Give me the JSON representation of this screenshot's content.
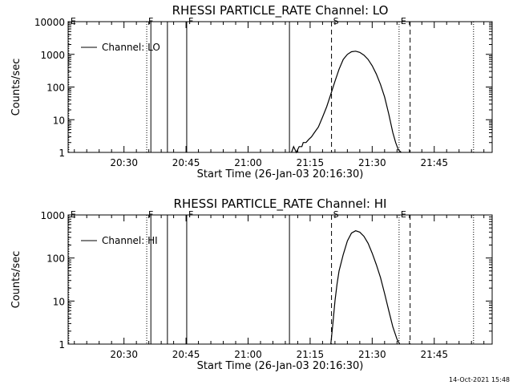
{
  "footer": {
    "timestamp": "14-Oct-2021 15:48"
  },
  "chart_data": [
    {
      "type": "line",
      "title": "RHESSI PARTICLE_RATE Channel: LO",
      "xlabel": "Start Time (26-Jan-03 20:16:30)",
      "ylabel": "Counts/sec",
      "y_scale": "log",
      "xlim": [
        "20:16:30",
        "21:59:00"
      ],
      "ylim": [
        1,
        10000
      ],
      "x_ticks": [
        "20:30",
        "20:45",
        "21:00",
        "21:15",
        "21:30",
        "21:45"
      ],
      "y_ticks": [
        "1",
        "10",
        "100",
        "1000",
        "10000"
      ],
      "legend": {
        "label": "Channel: LO",
        "position": "top-left"
      },
      "series": [
        {
          "name": "Channel: LO",
          "x": [
            "21:10:30",
            "21:11:00",
            "21:11:40",
            "21:12:20",
            "21:13:00",
            "21:13:20",
            "21:14:00",
            "21:14:40",
            "21:15:20",
            "21:16:00",
            "21:17:00",
            "21:18:00",
            "21:19:00",
            "21:20:00",
            "21:21:00",
            "21:22:00",
            "21:23:00",
            "21:24:00",
            "21:25:00",
            "21:26:00",
            "21:27:00",
            "21:28:00",
            "21:29:00",
            "21:30:00",
            "21:31:00",
            "21:32:00",
            "21:33:00",
            "21:34:00",
            "21:35:00",
            "21:35:40",
            "21:36:20",
            "21:37:00"
          ],
          "y": [
            1,
            1.5,
            1,
            1.5,
            1.5,
            2,
            2,
            2.5,
            3,
            4,
            6,
            12,
            25,
            60,
            150,
            350,
            700,
            1000,
            1200,
            1250,
            1150,
            950,
            700,
            450,
            250,
            120,
            50,
            15,
            4,
            2,
            1.2,
            1
          ]
        }
      ],
      "markers": [
        {
          "label": "E",
          "time": "20:16:40",
          "style": "dotted"
        },
        {
          "label": "F",
          "time": "20:35:30",
          "style": "dotted"
        },
        {
          "label": "",
          "time": "20:36:30",
          "style": "solid"
        },
        {
          "label": "",
          "time": "20:40:30",
          "style": "solid"
        },
        {
          "label": "F",
          "time": "20:45:10",
          "style": "solid"
        },
        {
          "label": "",
          "time": "21:10:00",
          "style": "solid"
        },
        {
          "label": "S",
          "time": "21:20:10",
          "style": "dashed"
        },
        {
          "label": "E",
          "time": "21:36:30",
          "style": "dotted"
        },
        {
          "label": "",
          "time": "21:39:10",
          "style": "dashed"
        },
        {
          "label": "",
          "time": "21:54:30",
          "style": "dotted"
        }
      ]
    },
    {
      "type": "line",
      "title": "RHESSI PARTICLE_RATE Channel: HI",
      "xlabel": "Start Time (26-Jan-03 20:16:30)",
      "ylabel": "Counts/sec",
      "y_scale": "log",
      "xlim": [
        "20:16:30",
        "21:59:00"
      ],
      "ylim": [
        1,
        1000
      ],
      "x_ticks": [
        "20:30",
        "20:45",
        "21:00",
        "21:15",
        "21:30",
        "21:45"
      ],
      "y_ticks": [
        "1",
        "10",
        "100",
        "1000"
      ],
      "legend": {
        "label": "Channel: HI",
        "position": "top-left"
      },
      "series": [
        {
          "name": "Channel: HI",
          "x": [
            "21:20:00",
            "21:20:30",
            "21:21:00",
            "21:21:30",
            "21:22:00",
            "21:23:00",
            "21:24:00",
            "21:25:00",
            "21:26:00",
            "21:27:00",
            "21:28:00",
            "21:29:00",
            "21:30:00",
            "21:31:00",
            "21:32:00",
            "21:33:00",
            "21:34:00",
            "21:35:00",
            "21:36:00",
            "21:36:40"
          ],
          "y": [
            1,
            3,
            10,
            25,
            50,
            120,
            250,
            380,
            430,
            400,
            320,
            220,
            130,
            70,
            35,
            15,
            6,
            2.5,
            1.3,
            1
          ]
        }
      ],
      "markers": [
        {
          "label": "E",
          "time": "20:16:40",
          "style": "dotted"
        },
        {
          "label": "F",
          "time": "20:35:30",
          "style": "dotted"
        },
        {
          "label": "",
          "time": "20:36:30",
          "style": "solid"
        },
        {
          "label": "",
          "time": "20:40:30",
          "style": "solid"
        },
        {
          "label": "F",
          "time": "20:45:10",
          "style": "solid"
        },
        {
          "label": "",
          "time": "21:10:00",
          "style": "solid"
        },
        {
          "label": "S",
          "time": "21:20:10",
          "style": "dashed"
        },
        {
          "label": "E",
          "time": "21:36:30",
          "style": "dotted"
        },
        {
          "label": "",
          "time": "21:39:10",
          "style": "dashed"
        },
        {
          "label": "",
          "time": "21:54:30",
          "style": "dotted"
        }
      ]
    }
  ]
}
